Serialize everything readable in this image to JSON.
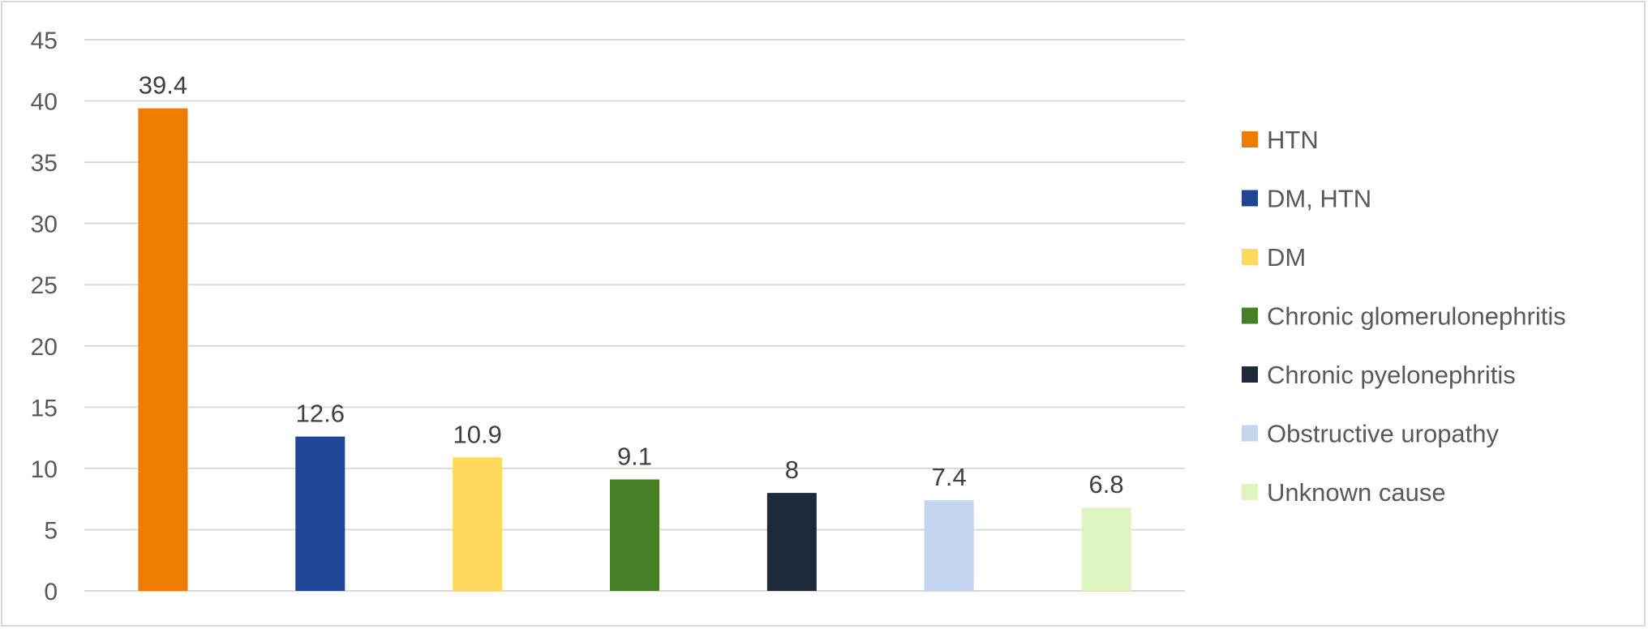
{
  "chart_data": {
    "type": "bar",
    "title": "",
    "xlabel": "",
    "ylabel": "",
    "categories": [
      "HTN",
      "DM, HTN",
      "DM",
      "Chronic glomerulonephritis",
      "Chronic pyelonephritis",
      "Obstructive uropathy",
      "Unknown cause"
    ],
    "values": [
      39.4,
      12.6,
      10.9,
      9.1,
      8,
      7.4,
      6.8
    ],
    "data_labels": [
      "39.4",
      "12.6",
      "10.9",
      "9.1",
      "8",
      "7.4",
      "6.8"
    ],
    "colors": [
      "#ed7d00",
      "#1f4597",
      "#ffd95c",
      "#477f26",
      "#1e2a3a",
      "#c5d5f0",
      "#dff5c1"
    ],
    "ylim": [
      0,
      45
    ],
    "yticks": [
      0,
      5,
      10,
      15,
      20,
      25,
      30,
      35,
      40,
      45
    ],
    "grid": true,
    "legend_position": "right",
    "x_tick_labels_shown": false
  }
}
